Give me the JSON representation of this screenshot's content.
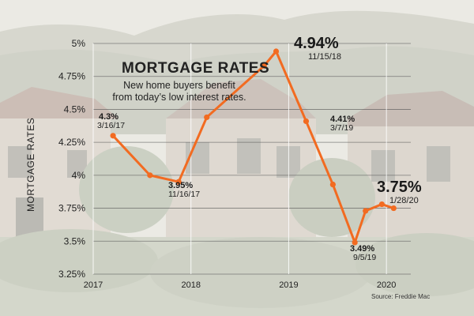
{
  "chart_data": {
    "type": "line",
    "title": "MORTGAGE RATES",
    "subtitle": "New home buyers benefit from today’s low interest rates.",
    "ylabel": "MORTGAGE RATES",
    "source": "Source: Freddie Mac",
    "line_color": "#f26b21",
    "ylim": [
      3.25,
      5.0
    ],
    "y_ticks": [
      "5%",
      "4.75%",
      "4.5%",
      "4.25%",
      "4%",
      "3.75%",
      "3.5%",
      "3.25%"
    ],
    "x_ticks": [
      "2017",
      "2018",
      "2019",
      "2020"
    ],
    "grid": true,
    "points": [
      {
        "date": "2017-03-16",
        "value": 4.3
      },
      {
        "date": "2017-08-01",
        "value": 4.0
      },
      {
        "date": "2017-11-16",
        "value": 3.95
      },
      {
        "date": "2018-03-01",
        "value": 4.44
      },
      {
        "date": "2018-10-01",
        "value": 4.83
      },
      {
        "date": "2018-11-15",
        "value": 4.94
      },
      {
        "date": "2019-03-07",
        "value": 4.41
      },
      {
        "date": "2019-06-15",
        "value": 3.93
      },
      {
        "date": "2019-09-05",
        "value": 3.49
      },
      {
        "date": "2019-10-15",
        "value": 3.73
      },
      {
        "date": "2019-12-15",
        "value": 3.78
      },
      {
        "date": "2020-01-28",
        "value": 3.75
      }
    ],
    "annotations": [
      {
        "value": "4.3%",
        "date": "3/16/17",
        "size": "small"
      },
      {
        "value": "3.95%",
        "date": "11/16/17",
        "size": "small"
      },
      {
        "value": "4.94%",
        "date": "11/15/18",
        "size": "large"
      },
      {
        "value": "4.41%",
        "date": "3/7/19",
        "size": "small"
      },
      {
        "value": "3.49%",
        "date": "9/5/19",
        "size": "small"
      },
      {
        "value": "3.75%",
        "date": "1/28/20",
        "size": "large"
      }
    ]
  }
}
